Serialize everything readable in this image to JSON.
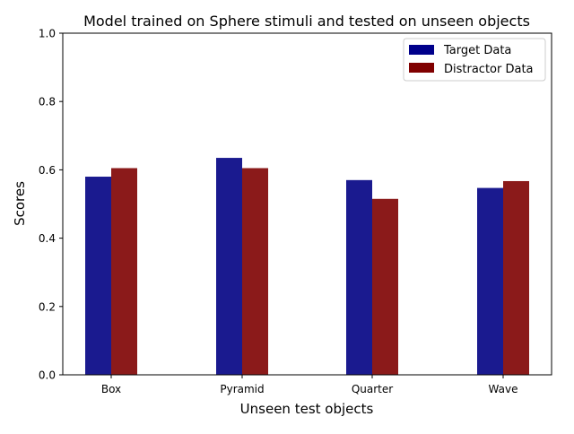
{
  "chart_data": {
    "type": "bar",
    "title": "Model trained on Sphere stimuli and tested on unseen objects",
    "xlabel": "Unseen test objects",
    "ylabel": "Scores",
    "categories": [
      "Box",
      "Pyramid",
      "Quarter",
      "Wave"
    ],
    "ylim": [
      0,
      1.0
    ],
    "yticks": [
      "0.0",
      "0.2",
      "0.4",
      "0.6",
      "0.8",
      "1.0"
    ],
    "series": [
      {
        "name": "Target Data",
        "values": [
          0.58,
          0.635,
          0.57,
          0.547
        ],
        "color": "#1a1a8f",
        "legend_color": "#00008b"
      },
      {
        "name": "Distractor Data",
        "values": [
          0.605,
          0.605,
          0.515,
          0.567
        ],
        "color": "#8b1a1a",
        "legend_color": "#800000"
      }
    ],
    "legend_position": "top-right",
    "grid": false
  }
}
